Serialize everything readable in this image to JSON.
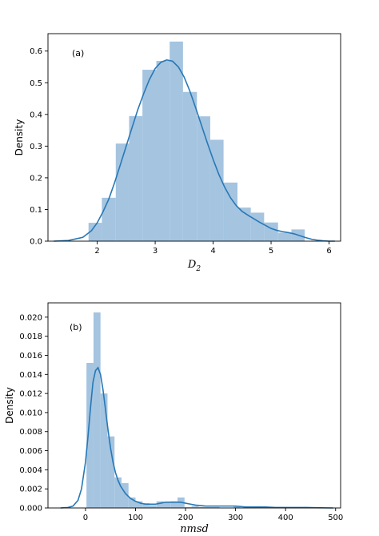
{
  "chart_data": [
    {
      "type": "histogram",
      "panel_label": "(a)",
      "xlabel_main": "D",
      "xlabel_sub": "2",
      "ylabel": "Density",
      "xlim": [
        1.15,
        6.2
      ],
      "ylim": [
        0,
        0.655
      ],
      "xticks": [
        2,
        3,
        4,
        5,
        6
      ],
      "yticks": [
        0.0,
        0.1,
        0.2,
        0.3,
        0.4,
        0.5,
        0.6
      ],
      "ytick_labels": [
        "0.0",
        "0.1",
        "0.2",
        "0.3",
        "0.4",
        "0.5",
        "0.6"
      ],
      "bins": [
        {
          "x0": 1.85,
          "x1": 2.08,
          "y": 0.058
        },
        {
          "x0": 2.08,
          "x1": 2.32,
          "y": 0.137
        },
        {
          "x0": 2.32,
          "x1": 2.55,
          "y": 0.308
        },
        {
          "x0": 2.55,
          "x1": 2.78,
          "y": 0.395
        },
        {
          "x0": 2.78,
          "x1": 3.02,
          "y": 0.541
        },
        {
          "x0": 3.02,
          "x1": 3.25,
          "y": 0.569
        },
        {
          "x0": 3.25,
          "x1": 3.48,
          "y": 0.63
        },
        {
          "x0": 3.48,
          "x1": 3.72,
          "y": 0.471
        },
        {
          "x0": 3.72,
          "x1": 3.95,
          "y": 0.394
        },
        {
          "x0": 3.95,
          "x1": 4.18,
          "y": 0.32
        },
        {
          "x0": 4.18,
          "x1": 4.42,
          "y": 0.185
        },
        {
          "x0": 4.42,
          "x1": 4.65,
          "y": 0.106
        },
        {
          "x0": 4.65,
          "x1": 4.88,
          "y": 0.09
        },
        {
          "x0": 4.88,
          "x1": 5.12,
          "y": 0.059
        },
        {
          "x0": 5.12,
          "x1": 5.35,
          "y": 0.027
        },
        {
          "x0": 5.35,
          "x1": 5.58,
          "y": 0.037
        }
      ],
      "kde": {
        "x": [
          1.25,
          1.5,
          1.75,
          1.9,
          2.0,
          2.1,
          2.2,
          2.3,
          2.4,
          2.5,
          2.6,
          2.7,
          2.8,
          2.9,
          3.0,
          3.1,
          3.2,
          3.3,
          3.4,
          3.5,
          3.6,
          3.7,
          3.8,
          3.9,
          4.0,
          4.1,
          4.2,
          4.3,
          4.4,
          4.5,
          4.6,
          4.7,
          4.8,
          4.9,
          5.0,
          5.1,
          5.2,
          5.3,
          5.4,
          5.5,
          5.6,
          5.7,
          5.8,
          5.9,
          6.0,
          6.1
        ],
        "y": [
          0.0,
          0.002,
          0.012,
          0.033,
          0.058,
          0.093,
          0.133,
          0.185,
          0.242,
          0.3,
          0.358,
          0.415,
          0.465,
          0.51,
          0.545,
          0.565,
          0.572,
          0.568,
          0.55,
          0.518,
          0.473,
          0.42,
          0.365,
          0.31,
          0.258,
          0.21,
          0.17,
          0.137,
          0.112,
          0.094,
          0.082,
          0.071,
          0.06,
          0.05,
          0.04,
          0.034,
          0.03,
          0.027,
          0.023,
          0.017,
          0.011,
          0.006,
          0.003,
          0.001,
          0.0,
          0.0
        ]
      }
    },
    {
      "type": "histogram",
      "panel_label": "(b)",
      "xlabel": "nmsd",
      "ylabel": "Density",
      "xlim": [
        -75,
        510
      ],
      "ylim": [
        0,
        0.0215
      ],
      "xticks": [
        0,
        100,
        200,
        300,
        400,
        500
      ],
      "yticks": [
        0.0,
        0.002,
        0.004,
        0.006,
        0.008,
        0.01,
        0.012,
        0.014,
        0.016,
        0.018,
        0.02
      ],
      "ytick_labels": [
        "0.000",
        "0.002",
        "0.004",
        "0.006",
        "0.008",
        "0.010",
        "0.012",
        "0.014",
        "0.016",
        "0.018",
        "0.020"
      ],
      "bins": [
        {
          "x0": 2,
          "x1": 16,
          "y": 0.0152
        },
        {
          "x0": 16,
          "x1": 30,
          "y": 0.0205
        },
        {
          "x0": 30,
          "x1": 44,
          "y": 0.012
        },
        {
          "x0": 44,
          "x1": 58,
          "y": 0.0075
        },
        {
          "x0": 58,
          "x1": 72,
          "y": 0.0032
        },
        {
          "x0": 72,
          "x1": 86,
          "y": 0.0026
        },
        {
          "x0": 86,
          "x1": 100,
          "y": 0.0011
        },
        {
          "x0": 100,
          "x1": 114,
          "y": 0.0007
        },
        {
          "x0": 114,
          "x1": 128,
          "y": 0.0005
        },
        {
          "x0": 128,
          "x1": 142,
          "y": 0.0003
        },
        {
          "x0": 142,
          "x1": 156,
          "y": 0.0007
        },
        {
          "x0": 156,
          "x1": 170,
          "y": 0.0006
        },
        {
          "x0": 170,
          "x1": 184,
          "y": 0.0007
        },
        {
          "x0": 184,
          "x1": 198,
          "y": 0.0011
        },
        {
          "x0": 198,
          "x1": 212,
          "y": 0.0001
        },
        {
          "x0": 212,
          "x1": 226,
          "y": 0.0002
        },
        {
          "x0": 226,
          "x1": 240,
          "y": 0.0001
        },
        {
          "x0": 240,
          "x1": 254,
          "y": 0.0001
        },
        {
          "x0": 254,
          "x1": 268,
          "y": 0.0001
        },
        {
          "x0": 296,
          "x1": 310,
          "y": 0.0002
        },
        {
          "x0": 338,
          "x1": 352,
          "y": 0.0001
        },
        {
          "x0": 380,
          "x1": 394,
          "y": 0.0001
        },
        {
          "x0": 436,
          "x1": 450,
          "y": 0.0001
        }
      ],
      "kde": {
        "x": [
          -50,
          -35,
          -25,
          -15,
          -8,
          0,
          5,
          10,
          15,
          20,
          25,
          30,
          35,
          40,
          45,
          50,
          55,
          60,
          65,
          70,
          80,
          90,
          100,
          110,
          120,
          130,
          140,
          150,
          160,
          170,
          180,
          190,
          200,
          210,
          220,
          240,
          260,
          280,
          300,
          320,
          340,
          360,
          380,
          400,
          420,
          440,
          460,
          480,
          495
        ],
        "y": [
          0.0,
          5e-05,
          0.0002,
          0.0008,
          0.002,
          0.0048,
          0.0075,
          0.0105,
          0.0132,
          0.0144,
          0.0147,
          0.014,
          0.0124,
          0.0103,
          0.0082,
          0.0063,
          0.0048,
          0.0037,
          0.0029,
          0.0023,
          0.0015,
          0.001,
          0.0007,
          0.0005,
          0.0004,
          0.0004,
          0.0004,
          0.0005,
          0.0006,
          0.0006,
          0.0006,
          0.0006,
          0.0005,
          0.0004,
          0.0003,
          0.0002,
          0.0002,
          0.0002,
          0.0002,
          0.0001,
          0.0001,
          0.0001,
          5e-05,
          5e-05,
          5e-05,
          5e-05,
          3e-05,
          1e-05,
          0.0
        ]
      }
    }
  ]
}
